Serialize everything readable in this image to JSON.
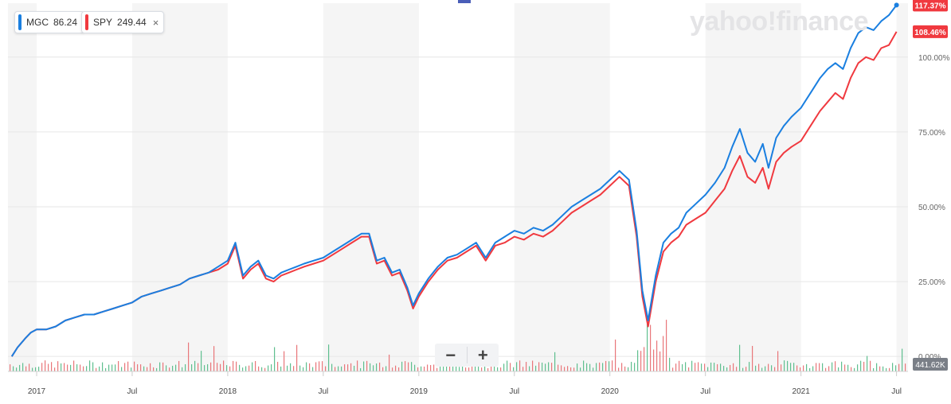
{
  "chart_data": {
    "type": "line",
    "tickers": [
      {
        "symbol": "MGC",
        "value": "86.24",
        "color": "#1a7fe0",
        "pct_label": "117.37%"
      },
      {
        "symbol": "SPY",
        "value": "249.44",
        "color": "#f0393f",
        "pct_label": "108.46%"
      }
    ],
    "close_symbol": "×",
    "y_tick_labels": [
      "100.00%",
      "75.00%",
      "50.00%",
      "25.00%",
      "0.00%"
    ],
    "y_ticks": [
      100,
      75,
      50,
      25,
      0
    ],
    "ylim": [
      -5,
      118
    ],
    "x_tick_labels": [
      "2017",
      "Jul",
      "2018",
      "Jul",
      "2019",
      "Jul",
      "2020",
      "Jul",
      "2021",
      "Jul"
    ],
    "x_ticks": [
      2017.0,
      2017.5,
      2018.0,
      2018.5,
      2019.0,
      2019.5,
      2020.0,
      2020.5,
      2021.0,
      2021.5
    ],
    "xlim": [
      2016.85,
      2021.56
    ],
    "volume_label": "441.62K",
    "spy_series": [
      [
        2016.87,
        0
      ],
      [
        2016.9,
        3
      ],
      [
        2016.94,
        6
      ],
      [
        2016.97,
        8
      ],
      [
        2017.0,
        9
      ],
      [
        2017.05,
        9
      ],
      [
        2017.1,
        10
      ],
      [
        2017.15,
        12
      ],
      [
        2017.2,
        13
      ],
      [
        2017.25,
        14
      ],
      [
        2017.3,
        14
      ],
      [
        2017.35,
        15
      ],
      [
        2017.4,
        16
      ],
      [
        2017.45,
        17
      ],
      [
        2017.5,
        18
      ],
      [
        2017.55,
        20
      ],
      [
        2017.6,
        21
      ],
      [
        2017.65,
        22
      ],
      [
        2017.7,
        23
      ],
      [
        2017.75,
        24
      ],
      [
        2017.8,
        26
      ],
      [
        2017.85,
        27
      ],
      [
        2017.9,
        28
      ],
      [
        2017.95,
        29
      ],
      [
        2018.0,
        31
      ],
      [
        2018.04,
        37
      ],
      [
        2018.08,
        26
      ],
      [
        2018.12,
        29
      ],
      [
        2018.16,
        31
      ],
      [
        2018.2,
        26
      ],
      [
        2018.24,
        25
      ],
      [
        2018.28,
        27
      ],
      [
        2018.32,
        28
      ],
      [
        2018.36,
        29
      ],
      [
        2018.4,
        30
      ],
      [
        2018.45,
        31
      ],
      [
        2018.5,
        32
      ],
      [
        2018.55,
        34
      ],
      [
        2018.6,
        36
      ],
      [
        2018.65,
        38
      ],
      [
        2018.7,
        40
      ],
      [
        2018.74,
        40
      ],
      [
        2018.78,
        31
      ],
      [
        2018.82,
        32
      ],
      [
        2018.86,
        27
      ],
      [
        2018.9,
        28
      ],
      [
        2018.94,
        22
      ],
      [
        2018.97,
        16
      ],
      [
        2019.0,
        20
      ],
      [
        2019.05,
        25
      ],
      [
        2019.1,
        29
      ],
      [
        2019.15,
        32
      ],
      [
        2019.2,
        33
      ],
      [
        2019.25,
        35
      ],
      [
        2019.3,
        37
      ],
      [
        2019.35,
        32
      ],
      [
        2019.4,
        37
      ],
      [
        2019.45,
        38
      ],
      [
        2019.5,
        40
      ],
      [
        2019.55,
        39
      ],
      [
        2019.6,
        41
      ],
      [
        2019.65,
        40
      ],
      [
        2019.7,
        42
      ],
      [
        2019.75,
        45
      ],
      [
        2019.8,
        48
      ],
      [
        2019.85,
        50
      ],
      [
        2019.9,
        52
      ],
      [
        2019.95,
        54
      ],
      [
        2020.0,
        57
      ],
      [
        2020.05,
        60
      ],
      [
        2020.1,
        57
      ],
      [
        2020.14,
        40
      ],
      [
        2020.17,
        20
      ],
      [
        2020.2,
        10
      ],
      [
        2020.24,
        25
      ],
      [
        2020.28,
        35
      ],
      [
        2020.32,
        38
      ],
      [
        2020.36,
        40
      ],
      [
        2020.4,
        44
      ],
      [
        2020.45,
        46
      ],
      [
        2020.5,
        48
      ],
      [
        2020.55,
        52
      ],
      [
        2020.6,
        56
      ],
      [
        2020.64,
        62
      ],
      [
        2020.68,
        67
      ],
      [
        2020.72,
        60
      ],
      [
        2020.76,
        58
      ],
      [
        2020.8,
        63
      ],
      [
        2020.83,
        56
      ],
      [
        2020.87,
        65
      ],
      [
        2020.91,
        68
      ],
      [
        2020.95,
        70
      ],
      [
        2021.0,
        72
      ],
      [
        2021.05,
        77
      ],
      [
        2021.1,
        82
      ],
      [
        2021.14,
        85
      ],
      [
        2021.18,
        88
      ],
      [
        2021.22,
        86
      ],
      [
        2021.26,
        93
      ],
      [
        2021.3,
        98
      ],
      [
        2021.34,
        100
      ],
      [
        2021.38,
        99
      ],
      [
        2021.42,
        103
      ],
      [
        2021.46,
        104
      ],
      [
        2021.5,
        108.46
      ]
    ],
    "mgc_series": [
      [
        2016.87,
        0
      ],
      [
        2016.9,
        3
      ],
      [
        2016.94,
        6
      ],
      [
        2016.97,
        8
      ],
      [
        2017.0,
        9
      ],
      [
        2017.05,
        9
      ],
      [
        2017.1,
        10
      ],
      [
        2017.15,
        12
      ],
      [
        2017.2,
        13
      ],
      [
        2017.25,
        14
      ],
      [
        2017.3,
        14
      ],
      [
        2017.35,
        15
      ],
      [
        2017.4,
        16
      ],
      [
        2017.45,
        17
      ],
      [
        2017.5,
        18
      ],
      [
        2017.55,
        20
      ],
      [
        2017.6,
        21
      ],
      [
        2017.65,
        22
      ],
      [
        2017.7,
        23
      ],
      [
        2017.75,
        24
      ],
      [
        2017.8,
        26
      ],
      [
        2017.85,
        27
      ],
      [
        2017.9,
        28
      ],
      [
        2017.95,
        30
      ],
      [
        2018.0,
        32
      ],
      [
        2018.04,
        38
      ],
      [
        2018.08,
        27
      ],
      [
        2018.12,
        30
      ],
      [
        2018.16,
        32
      ],
      [
        2018.2,
        27
      ],
      [
        2018.24,
        26
      ],
      [
        2018.28,
        28
      ],
      [
        2018.32,
        29
      ],
      [
        2018.36,
        30
      ],
      [
        2018.4,
        31
      ],
      [
        2018.45,
        32
      ],
      [
        2018.5,
        33
      ],
      [
        2018.55,
        35
      ],
      [
        2018.6,
        37
      ],
      [
        2018.65,
        39
      ],
      [
        2018.7,
        41
      ],
      [
        2018.74,
        41
      ],
      [
        2018.78,
        32
      ],
      [
        2018.82,
        33
      ],
      [
        2018.86,
        28
      ],
      [
        2018.9,
        29
      ],
      [
        2018.94,
        23
      ],
      [
        2018.97,
        17
      ],
      [
        2019.0,
        21
      ],
      [
        2019.05,
        26
      ],
      [
        2019.1,
        30
      ],
      [
        2019.15,
        33
      ],
      [
        2019.2,
        34
      ],
      [
        2019.25,
        36
      ],
      [
        2019.3,
        38
      ],
      [
        2019.35,
        33
      ],
      [
        2019.4,
        38
      ],
      [
        2019.45,
        40
      ],
      [
        2019.5,
        42
      ],
      [
        2019.55,
        41
      ],
      [
        2019.6,
        43
      ],
      [
        2019.65,
        42
      ],
      [
        2019.7,
        44
      ],
      [
        2019.75,
        47
      ],
      [
        2019.8,
        50
      ],
      [
        2019.85,
        52
      ],
      [
        2019.9,
        54
      ],
      [
        2019.95,
        56
      ],
      [
        2020.0,
        59
      ],
      [
        2020.05,
        62
      ],
      [
        2020.1,
        59
      ],
      [
        2020.14,
        42
      ],
      [
        2020.17,
        22
      ],
      [
        2020.2,
        12
      ],
      [
        2020.24,
        27
      ],
      [
        2020.28,
        38
      ],
      [
        2020.32,
        41
      ],
      [
        2020.36,
        43
      ],
      [
        2020.4,
        48
      ],
      [
        2020.45,
        51
      ],
      [
        2020.5,
        54
      ],
      [
        2020.55,
        58
      ],
      [
        2020.6,
        63
      ],
      [
        2020.64,
        70
      ],
      [
        2020.68,
        76
      ],
      [
        2020.72,
        68
      ],
      [
        2020.76,
        65
      ],
      [
        2020.8,
        71
      ],
      [
        2020.83,
        63
      ],
      [
        2020.87,
        73
      ],
      [
        2020.91,
        77
      ],
      [
        2020.95,
        80
      ],
      [
        2021.0,
        83
      ],
      [
        2021.05,
        88
      ],
      [
        2021.1,
        93
      ],
      [
        2021.14,
        96
      ],
      [
        2021.18,
        98
      ],
      [
        2021.22,
        96
      ],
      [
        2021.26,
        103
      ],
      [
        2021.3,
        108
      ],
      [
        2021.34,
        110
      ],
      [
        2021.38,
        109
      ],
      [
        2021.42,
        112
      ],
      [
        2021.46,
        114
      ],
      [
        2021.5,
        117.37
      ]
    ]
  }
}
